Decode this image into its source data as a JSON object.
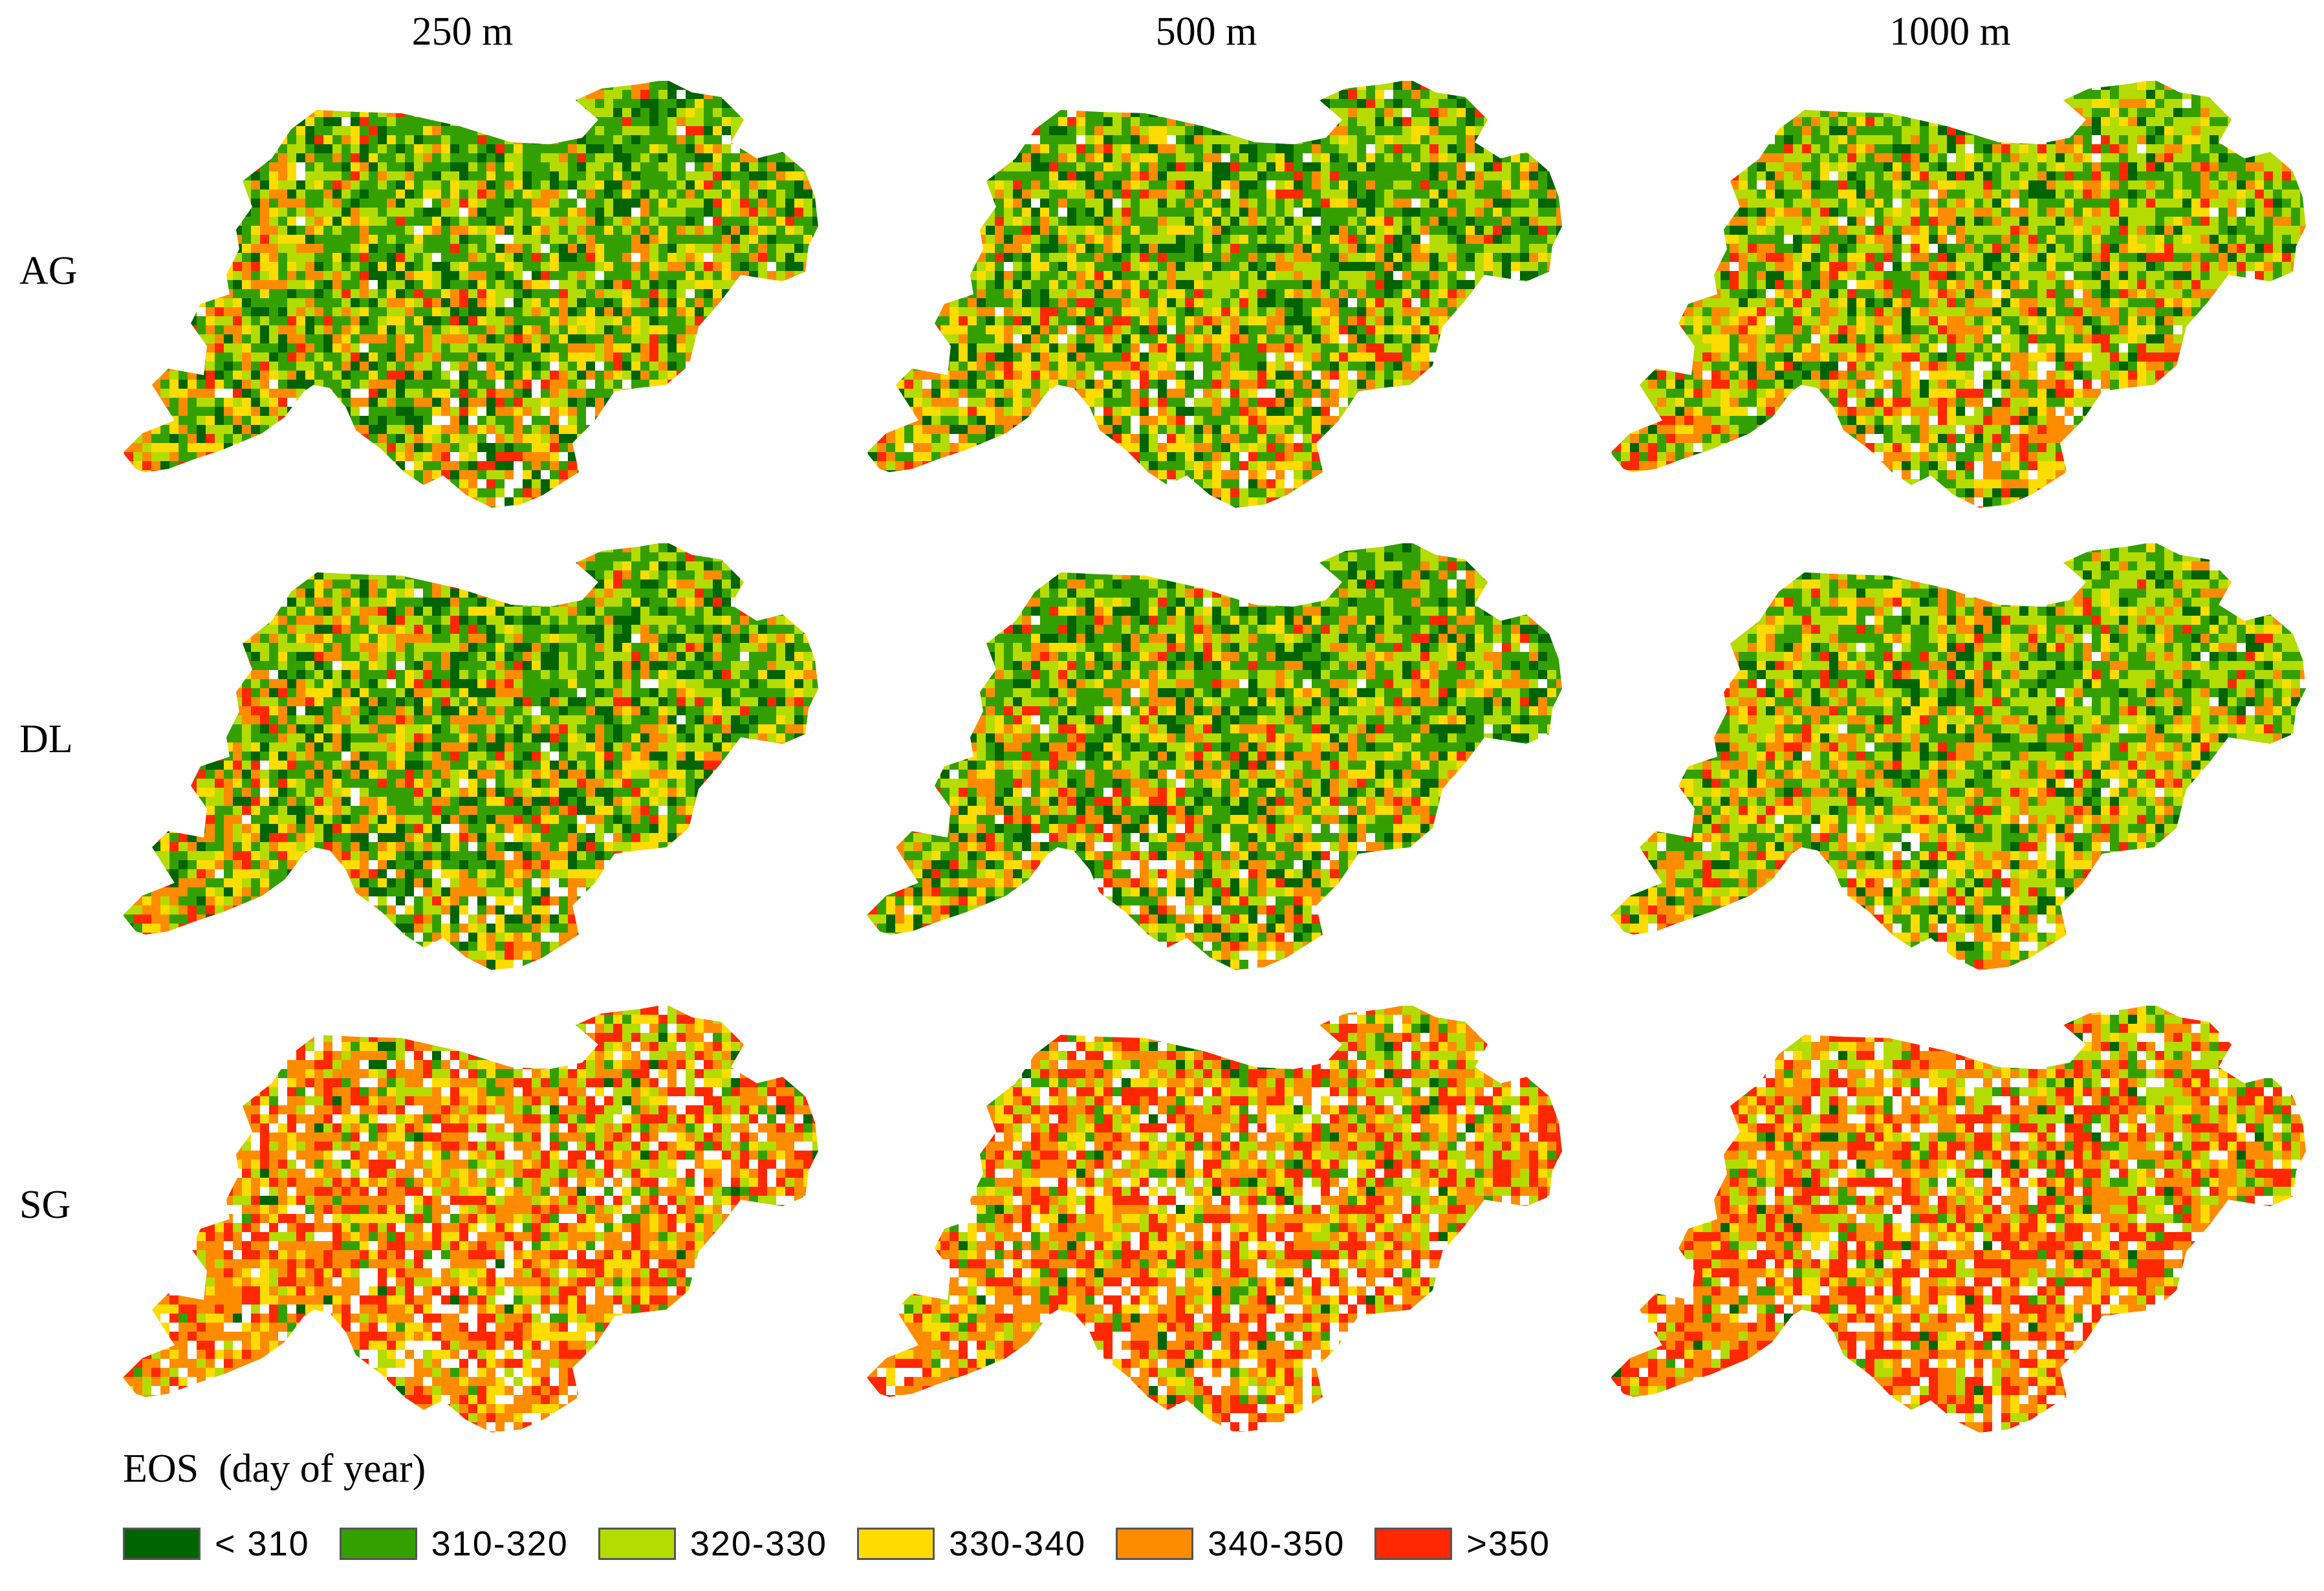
{
  "columns": [
    "250 m",
    "500 m",
    "1000 m"
  ],
  "rows": [
    "AG",
    "DL",
    "SG"
  ],
  "legend": {
    "title": "EOS  (day of year)",
    "items": [
      {
        "label": "< 310",
        "color": "#006400"
      },
      {
        "label": "310-320",
        "color": "#33A000"
      },
      {
        "label": "320-330",
        "color": "#B4DC00"
      },
      {
        "label": "330-340",
        "color": "#FFDC00"
      },
      {
        "label": "340-350",
        "color": "#FF8C00"
      },
      {
        "label": ">350",
        "color": "#FF2800"
      }
    ]
  },
  "maps": [
    {
      "row": "AG",
      "col": "250 m",
      "mix": [
        0.14,
        0.3,
        0.22,
        0.12,
        0.16,
        0.06
      ]
    },
    {
      "row": "AG",
      "col": "500 m",
      "mix": [
        0.14,
        0.3,
        0.22,
        0.12,
        0.16,
        0.06
      ]
    },
    {
      "row": "AG",
      "col": "1000 m",
      "mix": [
        0.08,
        0.24,
        0.3,
        0.12,
        0.18,
        0.08
      ]
    },
    {
      "row": "DL",
      "col": "250 m",
      "mix": [
        0.16,
        0.3,
        0.2,
        0.12,
        0.16,
        0.06
      ]
    },
    {
      "row": "DL",
      "col": "500 m",
      "mix": [
        0.15,
        0.3,
        0.21,
        0.12,
        0.16,
        0.06
      ]
    },
    {
      "row": "DL",
      "col": "1000 m",
      "mix": [
        0.1,
        0.26,
        0.28,
        0.12,
        0.18,
        0.06
      ]
    },
    {
      "row": "SG",
      "col": "250 m",
      "mix": [
        0.02,
        0.06,
        0.14,
        0.16,
        0.4,
        0.22
      ]
    },
    {
      "row": "SG",
      "col": "500 m",
      "mix": [
        0.02,
        0.06,
        0.14,
        0.16,
        0.38,
        0.24
      ]
    },
    {
      "row": "SG",
      "col": "1000 m",
      "mix": [
        0.02,
        0.06,
        0.16,
        0.12,
        0.34,
        0.3
      ]
    }
  ]
}
